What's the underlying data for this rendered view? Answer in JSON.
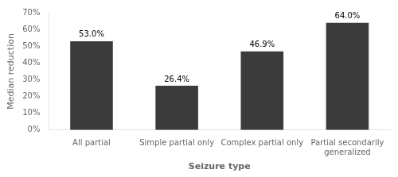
{
  "chart_data": {
    "type": "bar",
    "categories": [
      "All partial",
      "Simple partial only",
      "Complex partial only",
      "Partial secondarily\ngeneralized"
    ],
    "values": [
      53.0,
      26.4,
      46.9,
      64.0
    ],
    "value_labels": [
      "53.0%",
      "26.4%",
      "46.9%",
      "64.0%"
    ],
    "data_labels": true,
    "color": "#3b3b3b",
    "xlabel": "Seizure type",
    "ylabel": "Median reduction",
    "ylim": [
      0,
      70
    ],
    "yticks": [
      {
        "value": 0,
        "label": "0%"
      },
      {
        "value": 10,
        "label": "10%"
      },
      {
        "value": 20,
        "label": "20%"
      },
      {
        "value": 30,
        "label": "30%"
      },
      {
        "value": 40,
        "label": "40%"
      },
      {
        "value": 50,
        "label": "50%"
      },
      {
        "value": 60,
        "label": "60%"
      },
      {
        "value": 70,
        "label": "70%"
      }
    ],
    "grid": false
  }
}
